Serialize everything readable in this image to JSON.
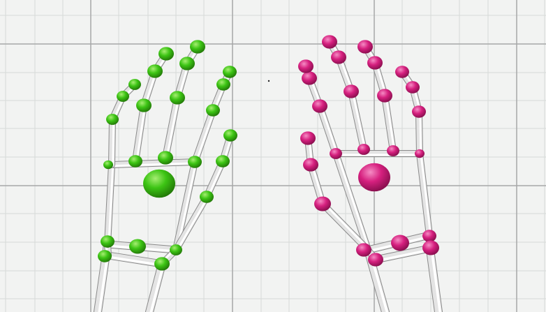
{
  "viewport": {
    "background": "#f2f3f2",
    "grid_minor_color": "#d6d9d8",
    "grid_major_color": "#a6a8a8"
  },
  "hands": {
    "left": {
      "joint_color": "#3cc414",
      "joint_highlight": "#9be86a",
      "joint_shadow": "#237a08"
    },
    "right": {
      "joint_color": "#d6207f",
      "joint_highlight": "#f07ab8",
      "joint_shadow": "#8c1050"
    }
  },
  "bone_color": "#e9e9e9",
  "bone_shade": "#8f8f8f"
}
